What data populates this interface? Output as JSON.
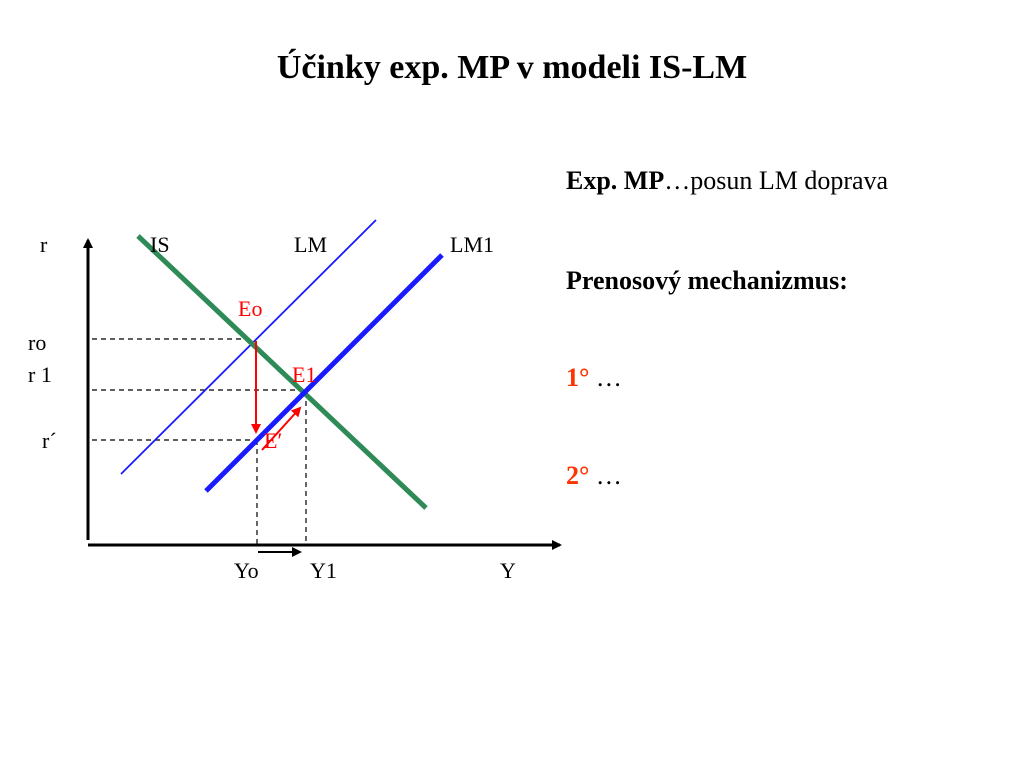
{
  "title": "Účinky exp. MP v modeli IS-LM",
  "notes": {
    "line1_bold": "Exp. MP",
    "line1_rest": "…posun LM doprava",
    "line2": "Prenosový mechanizmus:",
    "step1_num": "1°",
    "step1_text": " …",
    "step2_num": "2°",
    "step2_text": " …"
  },
  "diagram": {
    "axis_labels": {
      "y_axis": "r",
      "x_axis": "Y"
    },
    "curve_labels": {
      "is": "IS",
      "lm": "LM",
      "lm1": "LM1"
    },
    "r_ticks": {
      "ro": "ro",
      "r1": "r 1",
      "r_prime": "r´"
    },
    "y_ticks": {
      "yo": "Yo",
      "y1": "Y1"
    },
    "points": {
      "eo": "Eo",
      "e1": "E1",
      "e_prime": "E′"
    }
  },
  "colors": {
    "is_curve": "#2e8b57",
    "lm_curve": "#1a1aff",
    "lm1_curve": "#1a1aff",
    "highlight": "#ff0000",
    "text": "#000000"
  }
}
